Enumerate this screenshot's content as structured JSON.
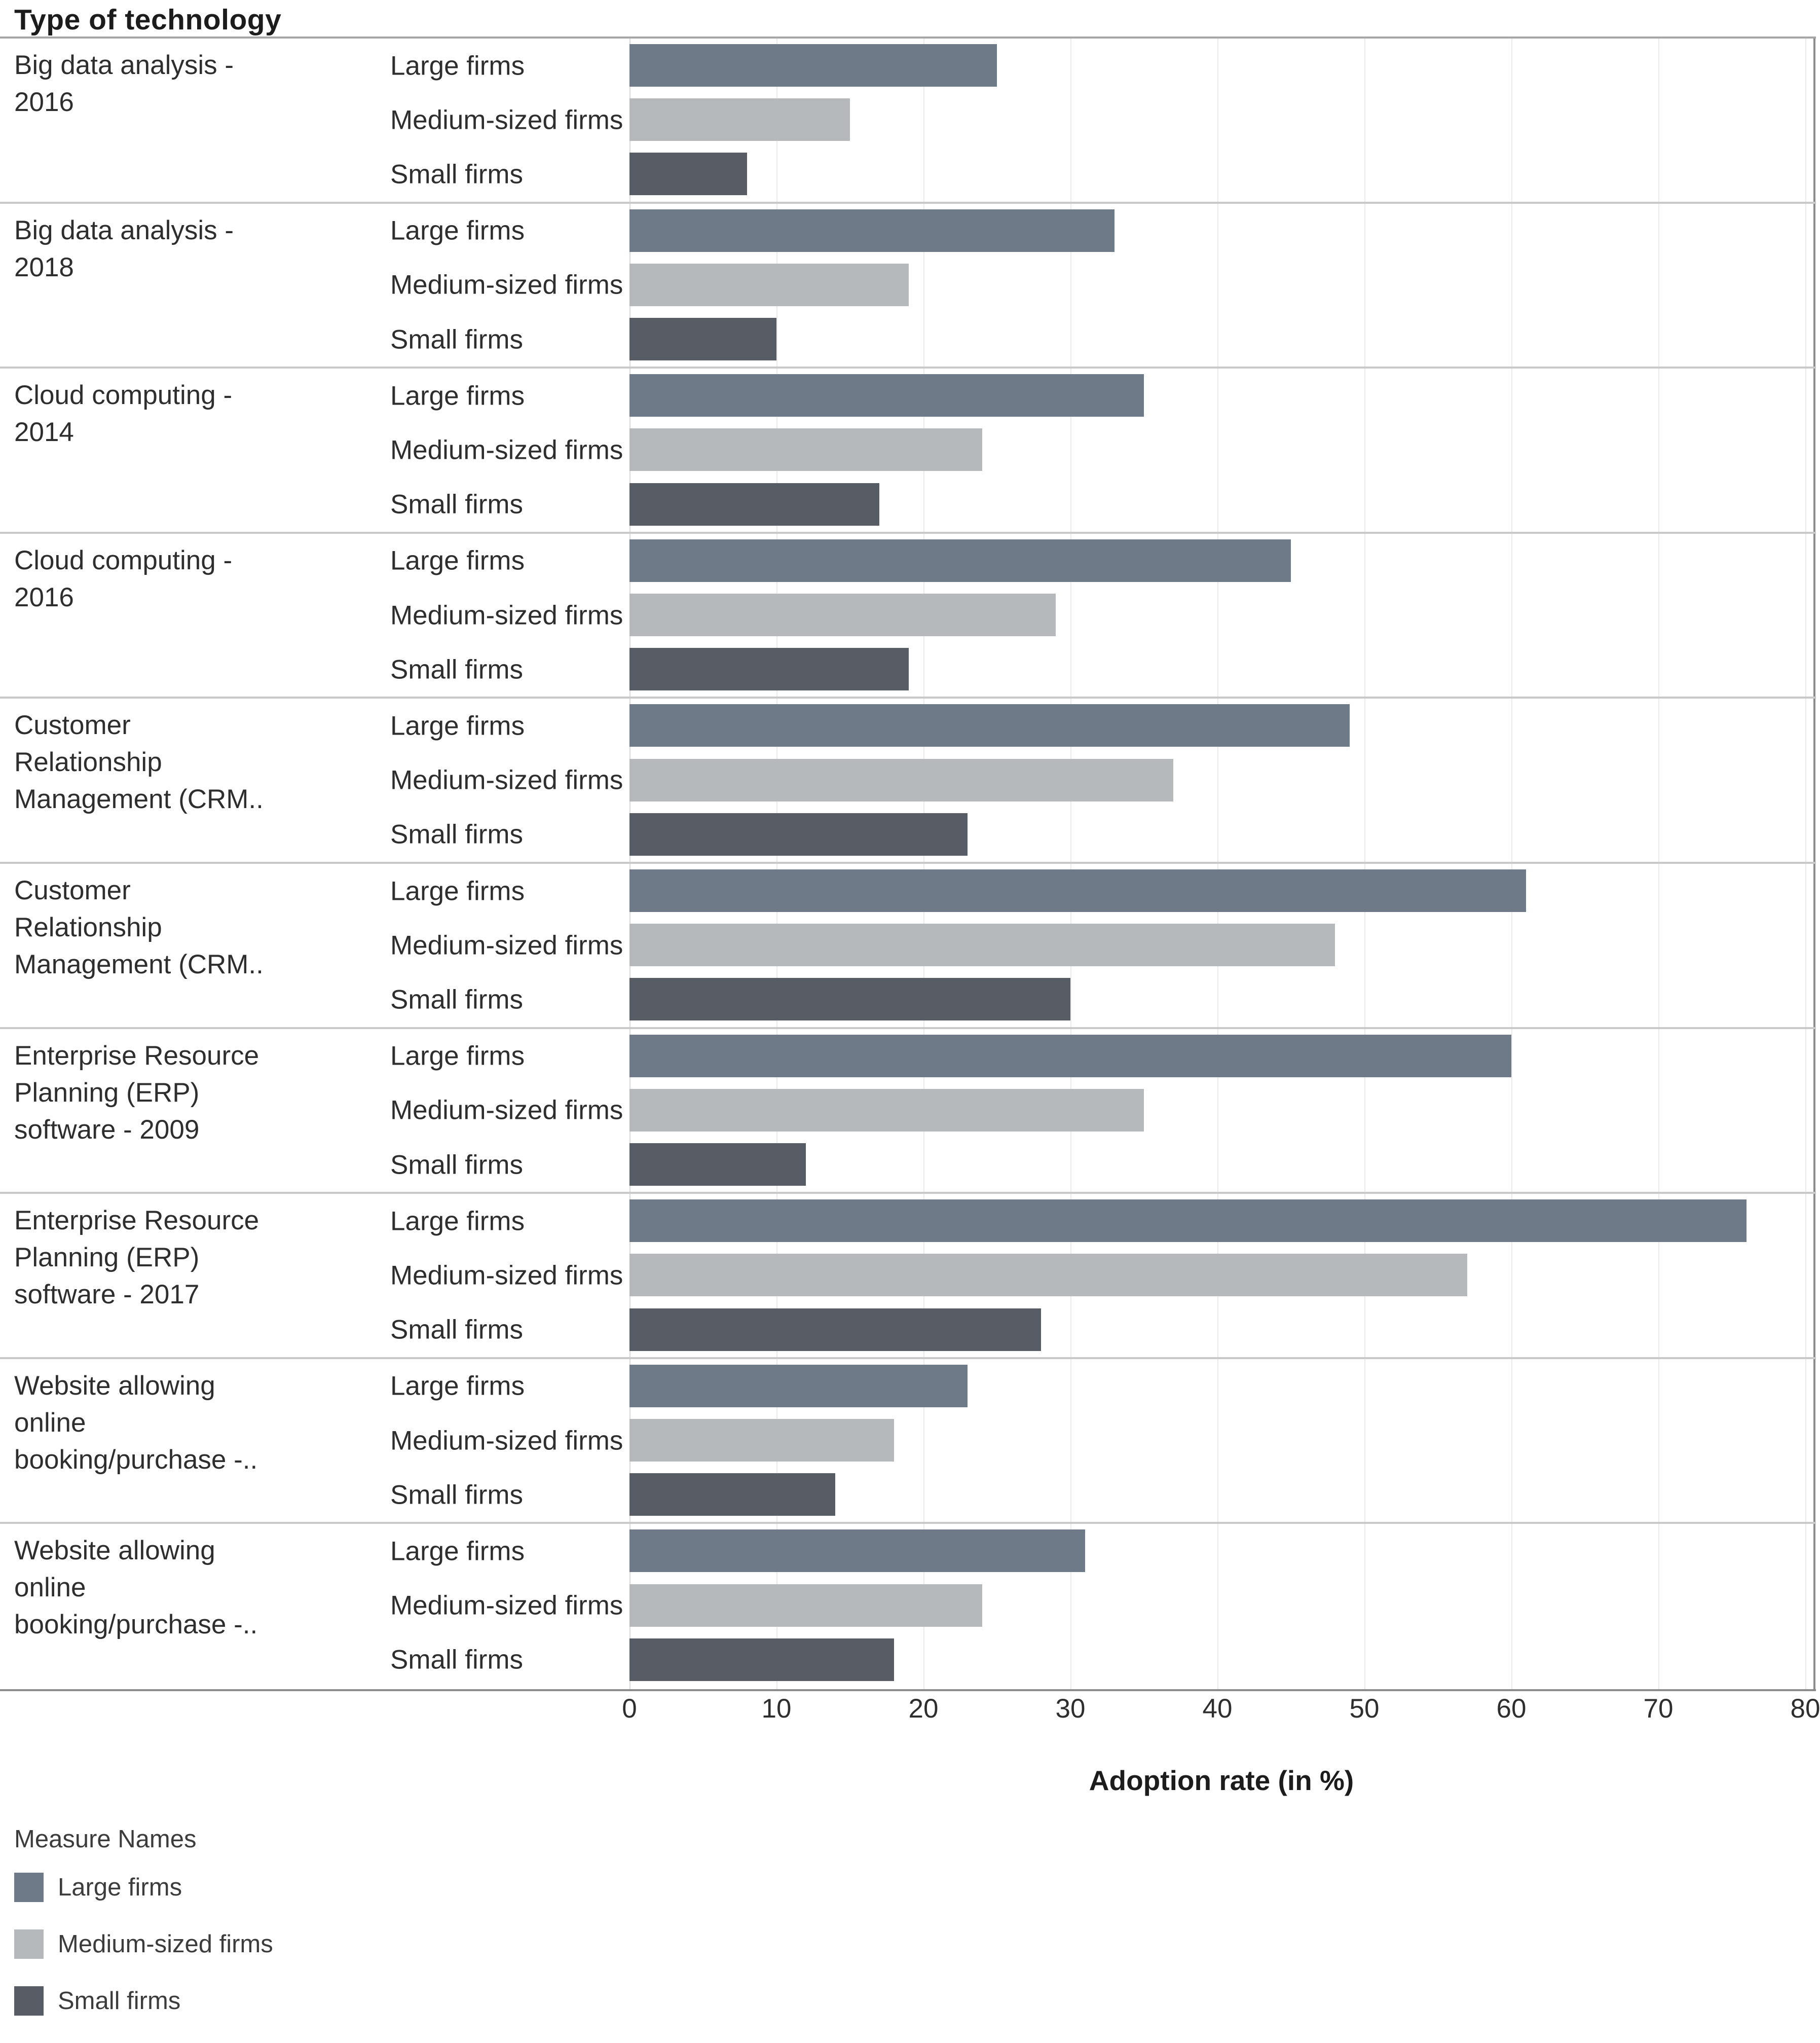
{
  "header": {
    "title": "Type of technology"
  },
  "axis": {
    "title": "Adoption rate (in %)",
    "ticks": [
      0,
      10,
      20,
      30,
      40,
      50,
      60,
      70,
      80
    ],
    "min": 0,
    "max": 80
  },
  "legend": {
    "title": "Measure Names",
    "items": [
      {
        "label": "Large firms",
        "color": "#6e7a88"
      },
      {
        "label": "Medium-sized firms",
        "color": "#b6b9bb"
      },
      {
        "label": "Small firms",
        "color": "#585c64"
      }
    ]
  },
  "chart_data": {
    "type": "bar",
    "orientation": "horizontal",
    "title": "Type of technology",
    "xlabel": "Adoption rate (in %)",
    "ylabel": "Type of technology",
    "xlim": [
      0,
      80
    ],
    "grid": true,
    "legend_position": "bottom-left",
    "categories": [
      "Big data analysis -\n2016",
      "Big data analysis -\n2018",
      "Cloud computing -\n2014",
      "Cloud computing -\n2016",
      "Customer\nRelationship\nManagement (CRM..",
      "Customer\nRelationship\nManagement (CRM..",
      "Enterprise Resource\nPlanning (ERP)\nsoftware - 2009",
      "Enterprise Resource\nPlanning (ERP)\nsoftware - 2017",
      "Website allowing\nonline\nbooking/purchase -..",
      "Website allowing\nonline\nbooking/purchase -.."
    ],
    "series": [
      {
        "name": "Large firms",
        "color": "#6e7a88",
        "values": [
          25,
          33,
          35,
          45,
          49,
          61,
          60,
          76,
          23,
          31
        ]
      },
      {
        "name": "Medium-sized firms",
        "color": "#b6b9bb",
        "values": [
          15,
          19,
          24,
          29,
          37,
          48,
          35,
          57,
          18,
          24
        ]
      },
      {
        "name": "Small firms",
        "color": "#585c64",
        "values": [
          8,
          10,
          17,
          19,
          23,
          30,
          12,
          28,
          14,
          18
        ]
      }
    ]
  }
}
